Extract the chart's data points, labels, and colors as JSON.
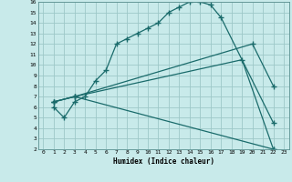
{
  "xlabel": "Humidex (Indice chaleur)",
  "bg_color": "#c8eaea",
  "grid_color": "#9dc8c8",
  "line_color": "#1a6b6b",
  "xlim": [
    -0.5,
    23.5
  ],
  "ylim": [
    2,
    16
  ],
  "xticks": [
    0,
    1,
    2,
    3,
    4,
    5,
    6,
    7,
    8,
    9,
    10,
    11,
    12,
    13,
    14,
    15,
    16,
    17,
    18,
    19,
    20,
    21,
    22,
    23
  ],
  "yticks": [
    2,
    3,
    4,
    5,
    6,
    7,
    8,
    9,
    10,
    11,
    12,
    13,
    14,
    15,
    16
  ],
  "line1_x": [
    1,
    2,
    3,
    4,
    5,
    6,
    7,
    8,
    9,
    10,
    11,
    12,
    13,
    14,
    15,
    16,
    17,
    22
  ],
  "line1_y": [
    6,
    5,
    6.5,
    7,
    8.5,
    9.5,
    12,
    12.5,
    13,
    13.5,
    14,
    15,
    15.5,
    16,
    16,
    15.7,
    14.5,
    4.5
  ],
  "line2_x": [
    1,
    3,
    20,
    22
  ],
  "line2_y": [
    6.5,
    7,
    12,
    8
  ],
  "line3_x": [
    1,
    3,
    19,
    22
  ],
  "line3_y": [
    6.5,
    7,
    10.5,
    2
  ],
  "line4_x": [
    1,
    3,
    22
  ],
  "line4_y": [
    6.5,
    7,
    2
  ]
}
